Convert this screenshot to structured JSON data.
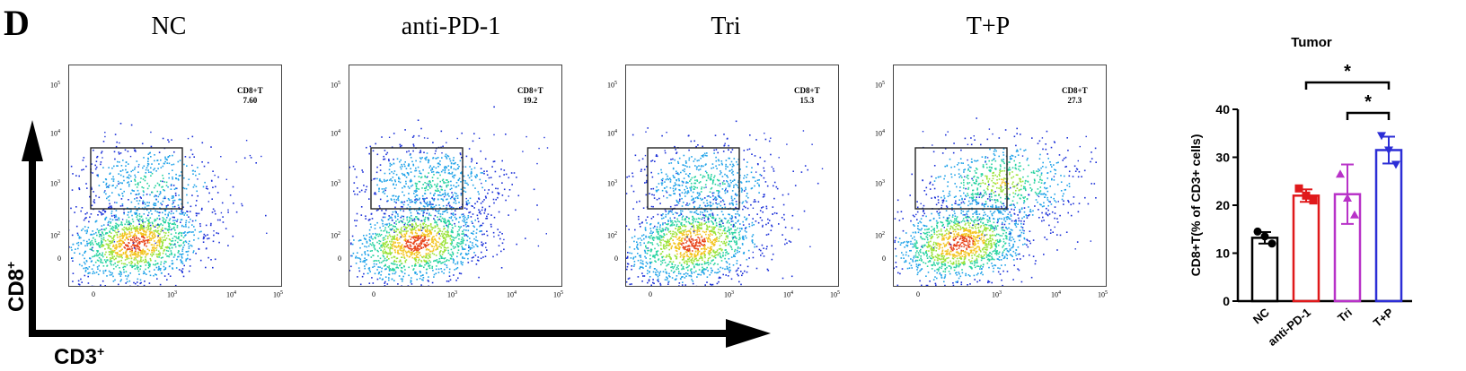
{
  "panel_label": "D",
  "flow": {
    "x_axis_label": "CD3",
    "x_axis_sup": "+",
    "y_axis_label": "CD8",
    "y_axis_sup": "+",
    "tick_exponents": [
      "5",
      "4",
      "3",
      "2"
    ],
    "tick_base": "10",
    "zero_tick": "0",
    "plots": [
      {
        "title": "NC",
        "gate_name": "CD8+T",
        "gate_value": "7.60",
        "density": 0.6
      },
      {
        "title": "anti-PD-1",
        "gate_name": "CD8+T",
        "gate_value": "19.2",
        "density": 0.9
      },
      {
        "title": "Tri",
        "gate_name": "CD8+T",
        "gate_value": "15.3",
        "density": 0.8
      },
      {
        "title": "T+P",
        "gate_name": "CD8+T",
        "gate_value": "27.3",
        "density": 1.0
      }
    ]
  },
  "chart_data": {
    "type": "bar",
    "title": "Tumor",
    "ylabel": "CD8+T(% of CD3+ cells)",
    "xlabel": "",
    "categories": [
      "NC",
      "anti-PD-1",
      "Tri",
      "T+P"
    ],
    "values": [
      13.2,
      22.0,
      22.3,
      31.5
    ],
    "errors": [
      1.2,
      1.3,
      6.2,
      2.8
    ],
    "points": [
      [
        14.5,
        12.0,
        13.5
      ],
      [
        23.5,
        21.0,
        22.0
      ],
      [
        26.5,
        18.0,
        21.5
      ],
      [
        34.5,
        28.5,
        31.5
      ]
    ],
    "point_markers": [
      "circle",
      "square",
      "triangle-up",
      "triangle-down"
    ],
    "colors": [
      "#000000",
      "#e0191b",
      "#b832c8",
      "#2c2ed6"
    ],
    "yticks": [
      0,
      10,
      20,
      30,
      40
    ],
    "ylim": [
      0,
      40
    ],
    "significance": [
      {
        "from": "anti-PD-1",
        "to": "T+P",
        "label": "*"
      },
      {
        "from": "Tri",
        "to": "T+P",
        "label": "*"
      }
    ]
  }
}
